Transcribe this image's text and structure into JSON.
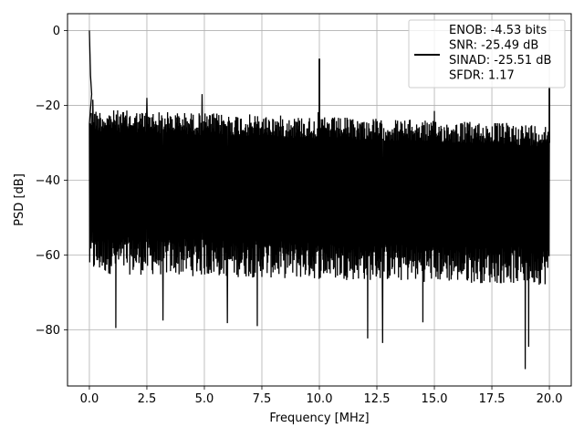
{
  "chart_data": {
    "type": "line",
    "title": "",
    "xlabel": "Frequency [MHz]",
    "ylabel": "PSD [dB]",
    "xlim": [
      -0.95,
      20.95
    ],
    "ylim": [
      -95.0,
      4.5
    ],
    "xticks": [
      0.0,
      2.5,
      5.0,
      7.5,
      10.0,
      12.5,
      15.0,
      17.5,
      20.0
    ],
    "xtick_labels": [
      "0.0",
      "2.5",
      "5.0",
      "7.5",
      "10.0",
      "12.5",
      "15.0",
      "17.5",
      "20.0"
    ],
    "yticks": [
      0,
      -20,
      -40,
      -60,
      -80
    ],
    "ytick_labels": [
      "0",
      "−20",
      "−40",
      "−60",
      "−80"
    ],
    "grid": true,
    "legend_position": "top-right",
    "line_color": "#000000",
    "series": [
      {
        "name": "",
        "description_points": [
          [
            0.0,
            0.0
          ],
          [
            0.05,
            -12.0
          ],
          [
            0.1,
            -17.0
          ],
          [
            10.0,
            -7.5
          ],
          [
            20.0,
            -15.0
          ]
        ],
        "band_top_start": -21.0,
        "band_top_end": -25.0,
        "band_bottom_start": -65.0,
        "band_bottom_end": -68.0,
        "x_start": 0.0,
        "x_end": 20.0,
        "spikes_down": [
          [
            1.15,
            -79.5
          ],
          [
            3.2,
            -77.5
          ],
          [
            6.0,
            -78.2
          ],
          [
            7.3,
            -79.0
          ],
          [
            12.1,
            -82.3
          ],
          [
            12.75,
            -83.5
          ],
          [
            14.5,
            -78.0
          ],
          [
            18.95,
            -90.5
          ],
          [
            19.1,
            -84.5
          ]
        ],
        "spikes_up": [
          [
            0.15,
            -18.5
          ],
          [
            2.5,
            -18.0
          ],
          [
            4.9,
            -17.0
          ],
          [
            9.95,
            -21.8
          ],
          [
            15.0,
            -21.5
          ]
        ]
      }
    ],
    "legend_entries": [
      "ENOB: -4.53 bits",
      "SNR: -25.49 dB",
      "SINAD: -25.51 dB",
      "SFDR: 1.17"
    ]
  }
}
